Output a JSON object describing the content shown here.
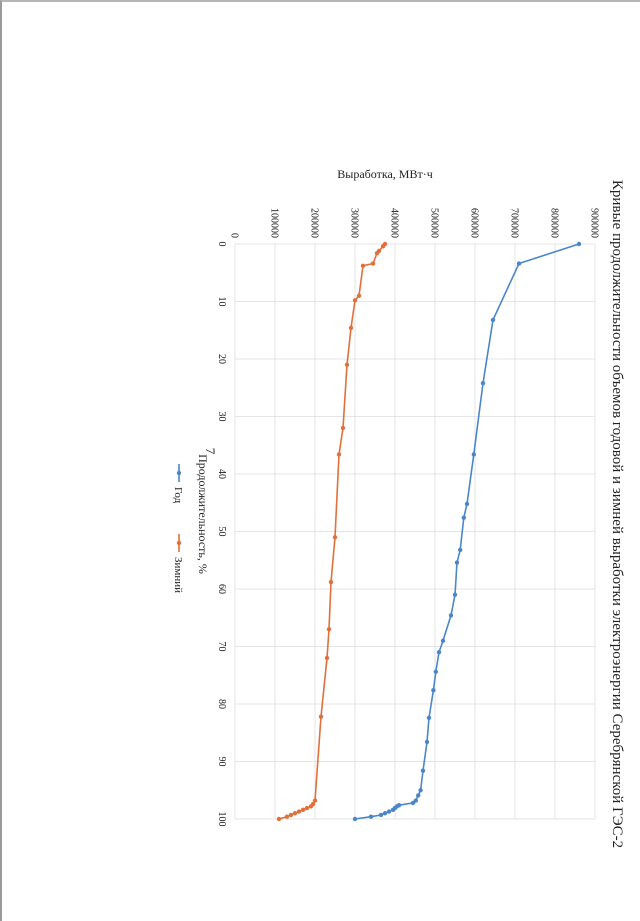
{
  "page": {
    "number": "7"
  },
  "chart_data": {
    "type": "line",
    "title": "Кривые продолжительности объемов годовой и зимней выработки электроэнергии Серебрянской ГЭС-2",
    "xlabel": "Продолжительность, %",
    "ylabel": "Выработка, МВт·ч",
    "xlim": [
      0,
      100
    ],
    "ylim": [
      0,
      900000
    ],
    "x_ticks": [
      "0",
      "10",
      "20",
      "30",
      "40",
      "50",
      "60",
      "70",
      "80",
      "90",
      "100"
    ],
    "y_ticks": [
      "0",
      "100000",
      "200000",
      "300000",
      "400000",
      "500000",
      "600000",
      "700000",
      "800000",
      "900000"
    ],
    "grid": true,
    "legend_position": "bottom",
    "series": [
      {
        "name": "Год",
        "color": "#4a86c8",
        "x": [
          0,
          3.4,
          13.2,
          24.2,
          36.6,
          45.2,
          47.6,
          53.2,
          55.4,
          61.0,
          64.6,
          69.0,
          71.0,
          74.4,
          77.6,
          82.4,
          86.6,
          91.6,
          95.0,
          95.9,
          96.8,
          97.2,
          97.6,
          97.8,
          98.1,
          98.4,
          98.7,
          99.0,
          99.3,
          99.6,
          100
        ],
        "y": [
          860000,
          710000,
          645000,
          620000,
          597000,
          580000,
          572000,
          563000,
          555000,
          550000,
          540000,
          520000,
          510000,
          502000,
          496000,
          485000,
          480000,
          470000,
          464000,
          458000,
          452000,
          445000,
          410000,
          405000,
          400000,
          395000,
          385000,
          375000,
          365000,
          340000,
          300000
        ]
      },
      {
        "name": "Зимний",
        "color": "#e2703a",
        "x": [
          0,
          0.4,
          1.2,
          1.6,
          3.4,
          3.8,
          9.0,
          9.8,
          14.6,
          21.0,
          32.0,
          36.6,
          51.0,
          58.8,
          67.0,
          72.0,
          82.2,
          96.8,
          97.4,
          97.8,
          98.1,
          98.4,
          98.7,
          99.0,
          99.3,
          99.6,
          100
        ],
        "y": [
          375000,
          370000,
          360000,
          355000,
          345000,
          320000,
          310000,
          300000,
          290000,
          280000,
          270000,
          260000,
          250000,
          240000,
          235000,
          230000,
          215000,
          200000,
          195000,
          190000,
          180000,
          170000,
          160000,
          150000,
          140000,
          130000,
          110000
        ]
      }
    ]
  }
}
